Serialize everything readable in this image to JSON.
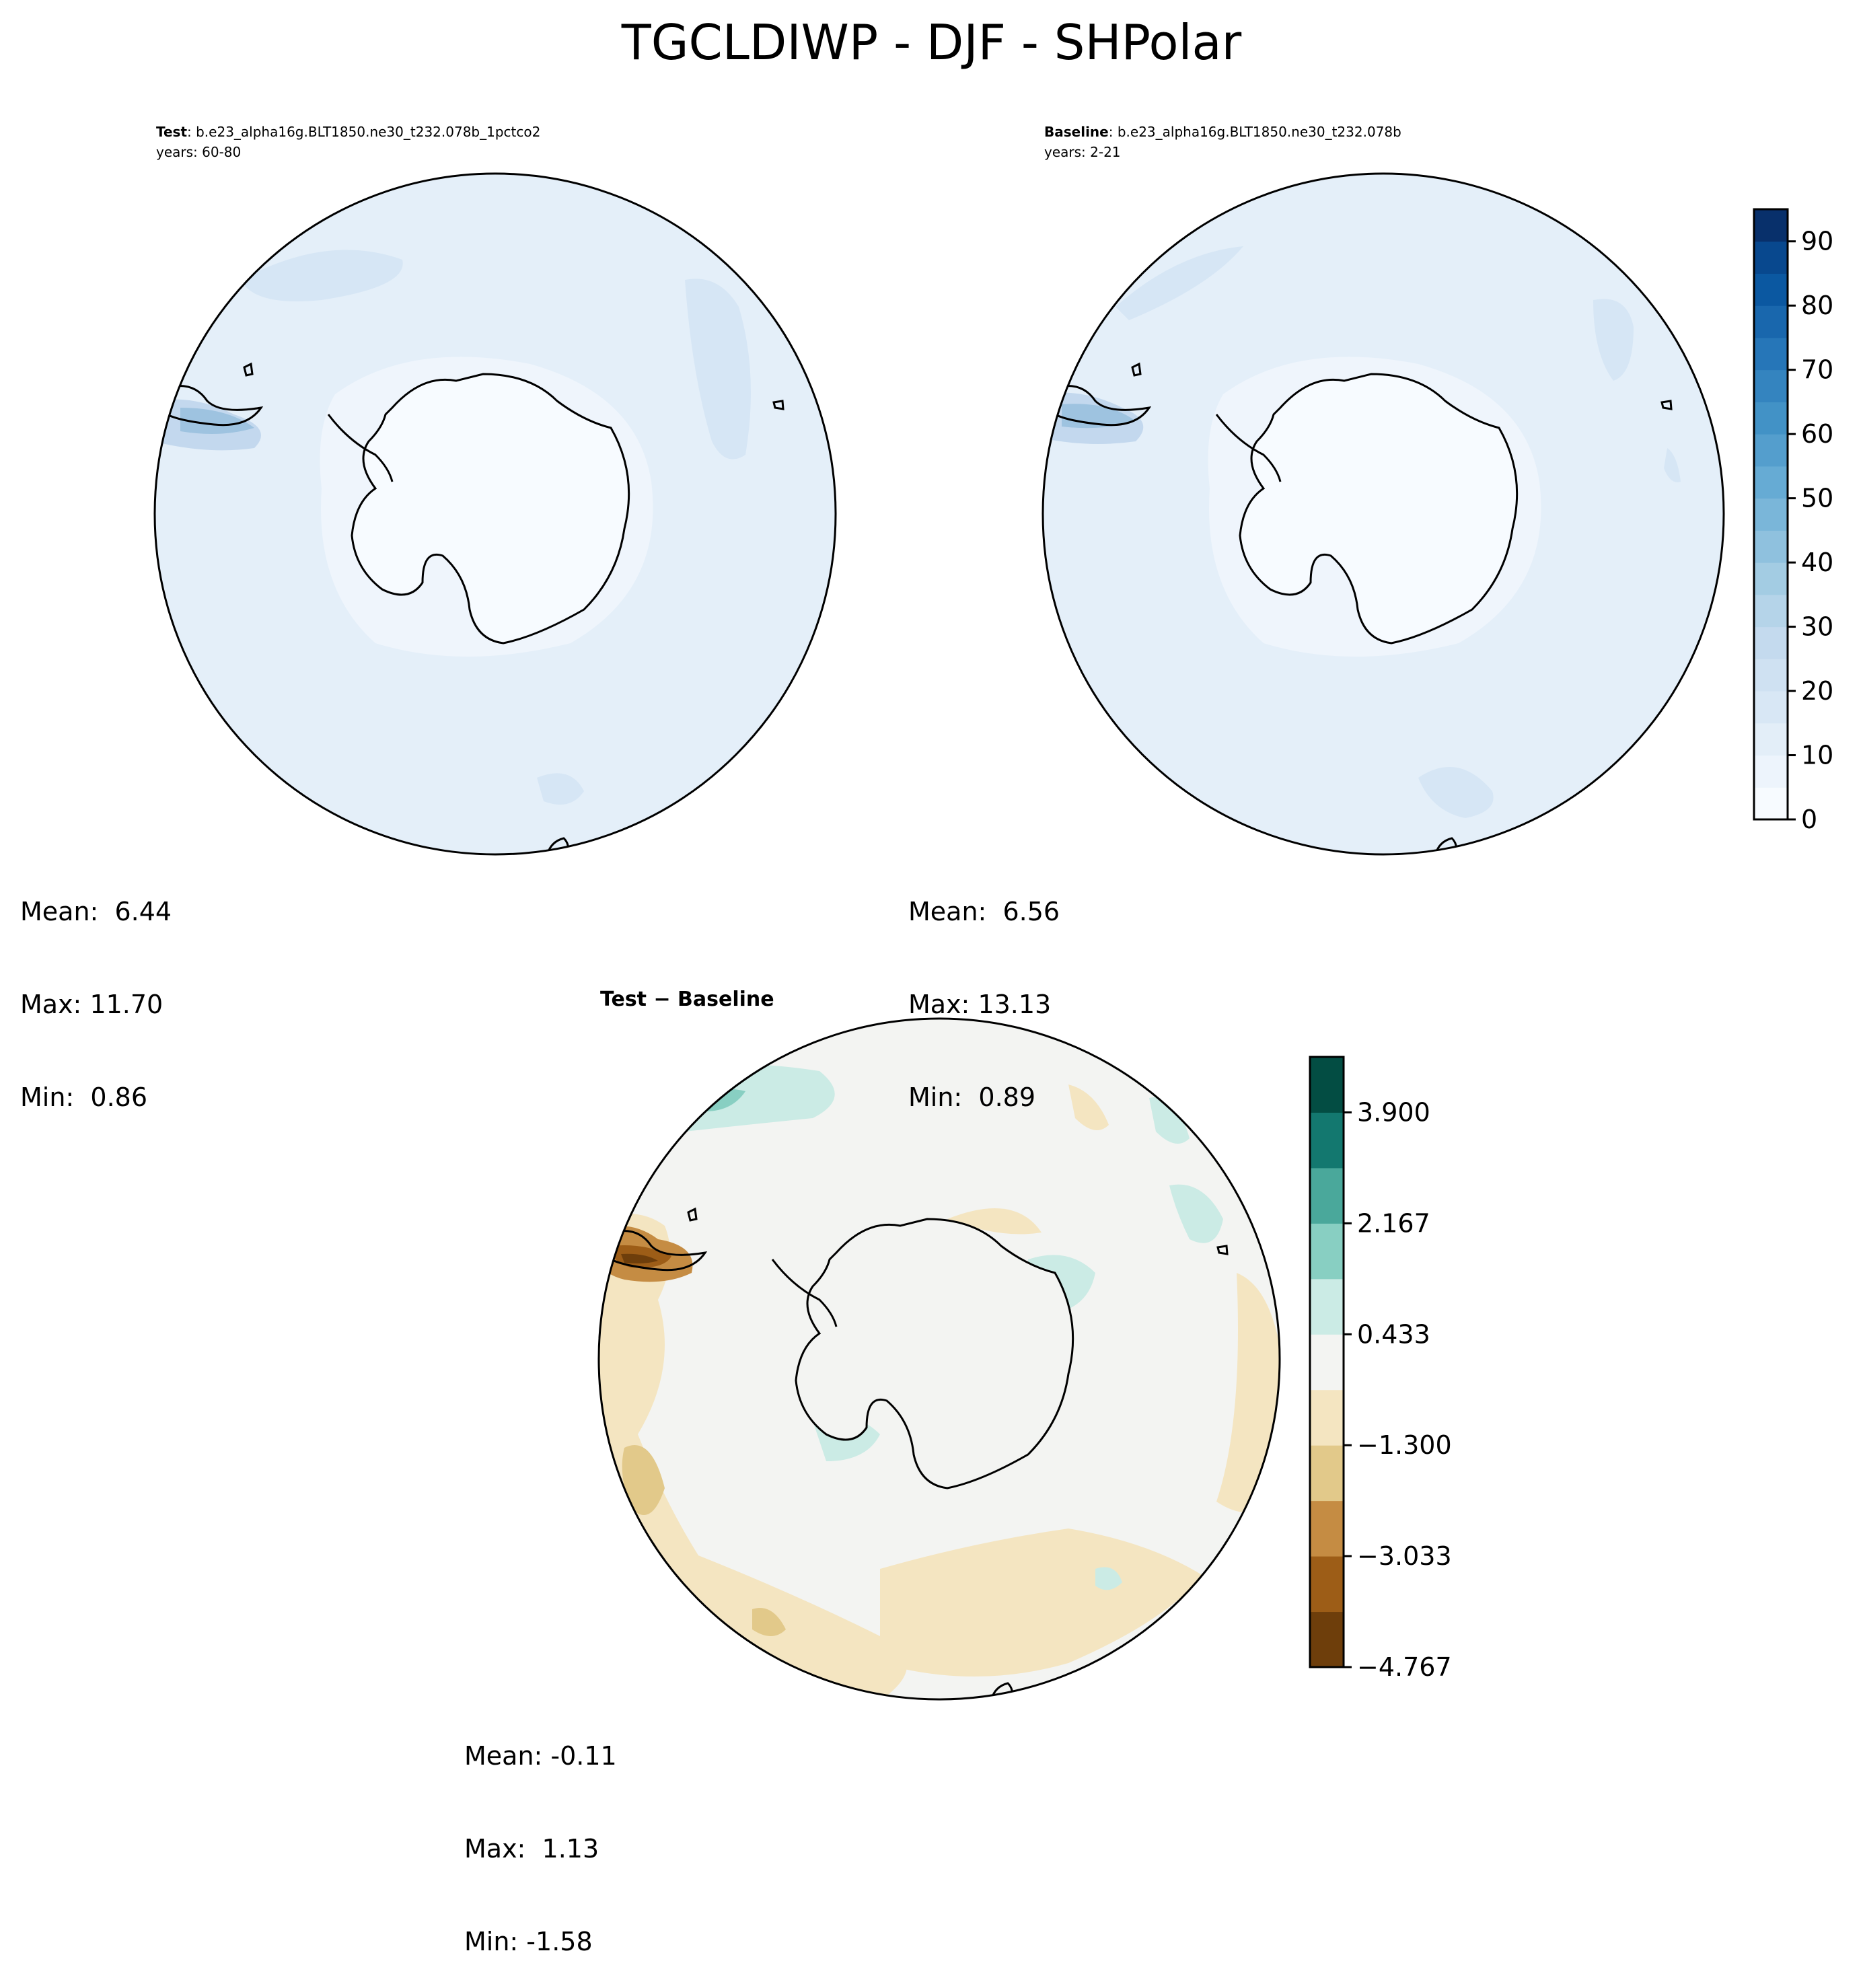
{
  "figure": {
    "title": "TGCLDIWP - DJF - SHPolar"
  },
  "panels": {
    "test": {
      "label": "Test",
      "case": ": b.e23_alpha16g.BLT1850.ne30_t232.078b_1pctco2",
      "years": "years: 60-80",
      "stats": {
        "mean": "Mean:  6.44",
        "max": "Max: 11.70",
        "min": "Min:  0.86"
      }
    },
    "baseline": {
      "label": "Baseline",
      "case": ": b.e23_alpha16g.BLT1850.ne30_t232.078b",
      "years": "years: 2-21",
      "stats": {
        "mean": "Mean:  6.56",
        "max": "Max: 13.13",
        "min": "Min:  0.89"
      }
    },
    "diff": {
      "title": "Test − Baseline",
      "stats": {
        "mean": "Mean: -0.11",
        "max": "Max:  1.13",
        "min": "Min: -1.58"
      }
    }
  },
  "chart_data": [
    {
      "type": "heatmap",
      "panel": "test",
      "projection": "south-polar-stereographic",
      "variable": "TGCLDIWP",
      "season": "DJF",
      "region": "SHPolar",
      "mean": 6.44,
      "max": 11.7,
      "min": 0.86,
      "colormap": "Blues",
      "levels": [
        0,
        5,
        10,
        15,
        20,
        25,
        30,
        35,
        40,
        45,
        50,
        55,
        60,
        65,
        70,
        75,
        80,
        85,
        90,
        95
      ]
    },
    {
      "type": "heatmap",
      "panel": "baseline",
      "projection": "south-polar-stereographic",
      "variable": "TGCLDIWP",
      "season": "DJF",
      "region": "SHPolar",
      "mean": 6.56,
      "max": 13.13,
      "min": 0.89,
      "colormap": "Blues",
      "levels": [
        0,
        5,
        10,
        15,
        20,
        25,
        30,
        35,
        40,
        45,
        50,
        55,
        60,
        65,
        70,
        75,
        80,
        85,
        90,
        95
      ]
    },
    {
      "type": "heatmap",
      "panel": "diff",
      "projection": "south-polar-stereographic",
      "mean": -0.11,
      "max": 1.13,
      "min": -1.58,
      "colormap": "BrBG",
      "levels": [
        -4.767,
        -3.9,
        -3.033,
        -2.167,
        -1.3,
        -0.433,
        0.433,
        1.3,
        2.167,
        3.033,
        3.9,
        4.767
      ]
    }
  ],
  "colorbars": {
    "abs": {
      "ticks": [
        "0",
        "10",
        "20",
        "30",
        "40",
        "50",
        "60",
        "70",
        "80",
        "90"
      ],
      "tick_values": [
        0,
        10,
        20,
        30,
        40,
        50,
        60,
        70,
        80,
        90
      ],
      "range": [
        0,
        95
      ],
      "colors": [
        "#f7fbff",
        "#edf4fc",
        "#e3eef8",
        "#d8e7f5",
        "#cfe1f2",
        "#c4daee",
        "#b5d4e9",
        "#a3cce3",
        "#8fc1de",
        "#7ab6d9",
        "#66abd4",
        "#549ecd",
        "#4292c6",
        "#3484bf",
        "#2676b8",
        "#1967ad",
        "#0b58a1",
        "#08488e",
        "#08306b"
      ]
    },
    "diff": {
      "ticks": [
        "−4.767",
        "−3.033",
        "−1.300",
        "0.433",
        "2.167",
        "3.900"
      ],
      "tick_values": [
        -4.767,
        -3.033,
        -1.3,
        0.433,
        2.167,
        3.9
      ],
      "range": [
        -4.767,
        4.767
      ],
      "colors": [
        "#6e3e0b",
        "#9d5d17",
        "#c58c43",
        "#e2c98a",
        "#f4e5c1",
        "#f3f4f2",
        "#cbebe5",
        "#88cfc2",
        "#4aa89b",
        "#13786f",
        "#034d43"
      ]
    }
  }
}
